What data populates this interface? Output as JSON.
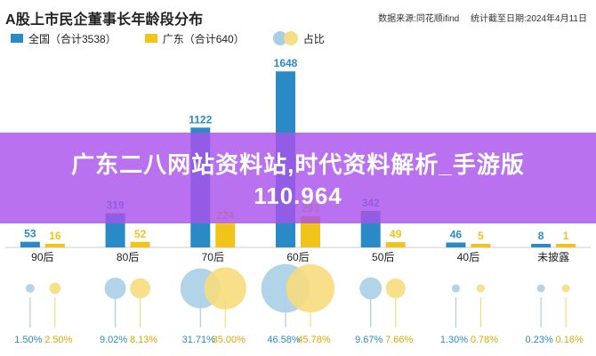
{
  "header": {
    "title": "A股上市民企董事长年龄段分布",
    "source": "数据来源:同花顺ifind",
    "date": "统计截至日期:2024年4月11日"
  },
  "legend": {
    "national": "全国（合计3538）",
    "guangdong": "广东（合计640）",
    "share": "占比"
  },
  "banner": {
    "line1": "广东二八网站资料站,时代资料解析_手游版",
    "line2": "110.964"
  },
  "colors": {
    "national": "#2a8ac5",
    "guangdong": "#f2c318",
    "national_bubble": "#a9cfe6",
    "guangdong_bubble": "#f7dc7d"
  },
  "chart_data": {
    "type": "bar",
    "categories": [
      "90后",
      "80后",
      "70后",
      "60后",
      "50后",
      "40后",
      "未披露"
    ],
    "series": [
      {
        "name": "全国（合计3538）",
        "values": [
          53,
          319,
          1122,
          1648,
          342,
          46,
          8
        ],
        "share_labels": [
          "1.50%",
          "9.02%",
          "31.71%",
          "46.58%",
          "9.67%",
          "1.30%",
          "0.23%"
        ]
      },
      {
        "name": "广东（合计640）",
        "values": [
          16,
          52,
          224,
          293,
          49,
          5,
          1
        ],
        "share_labels": [
          "2.50%",
          "8.13%",
          "35.00%",
          "45.78%",
          "7.66%",
          "0.78%",
          "0.16%"
        ]
      }
    ],
    "title": "A股上市民企董事长年龄段分布",
    "ylim": [
      0,
      1700
    ]
  }
}
